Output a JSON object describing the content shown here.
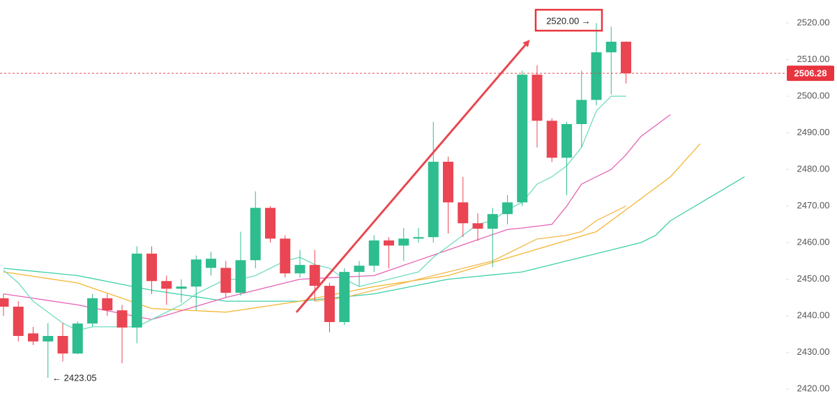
{
  "chart_data": {
    "type": "candlestick",
    "ylim": [
      2418.5,
      2526.3
    ],
    "yticks": [
      {
        "value": 2420,
        "label": "2420.00"
      },
      {
        "value": 2430,
        "label": "2430.00"
      },
      {
        "value": 2440,
        "label": "2440.00"
      },
      {
        "value": 2450,
        "label": "2450.00"
      },
      {
        "value": 2460,
        "label": "2460.00"
      },
      {
        "value": 2470,
        "label": "2470.00"
      },
      {
        "value": 2480,
        "label": "2480.00"
      },
      {
        "value": 2490,
        "label": "2490.00"
      },
      {
        "value": 2500,
        "label": "2500.00"
      },
      {
        "value": 2510,
        "label": "2510.00"
      },
      {
        "value": 2520,
        "label": "2520.00"
      }
    ],
    "up_color": "#2dbd8f",
    "down_color": "#ea4552",
    "open": [
      2444.8,
      2442.5,
      2435.2,
      2433,
      2434.5,
      2429.7,
      2437.9,
      2444.8,
      2441.5,
      2436.8,
      2457,
      2449.5,
      2447.4,
      2448,
      2453.1,
      2453.1,
      2446.3,
      2455.2,
      2469.5,
      2461.1,
      2451.6,
      2453.9,
      2448.2,
      2438.3,
      2452,
      2453.7,
      2460.6,
      2459.2,
      2461.1,
      2461.5,
      2482.1,
      2471,
      2465.3,
      2463.8,
      2467.8,
      2471,
      2505.9,
      2493.3,
      2483.2,
      2492.4,
      2499,
      2512,
      2514.9
    ],
    "high": [
      2446,
      2444,
      2437,
      2438,
      2438,
      2438.5,
      2446,
      2446,
      2443,
      2459,
      2459,
      2451,
      2450,
      2456.5,
      2457.5,
      2455,
      2463,
      2474,
      2470,
      2462,
      2458,
      2458,
      2449,
      2453,
      2455,
      2462,
      2461.5,
      2464,
      2464,
      2493,
      2483.5,
      2478,
      2468,
      2469.5,
      2473,
      2507,
      2508.5,
      2494,
      2493,
      2507,
      2520,
      2519,
      2515
    ],
    "low": [
      2440,
      2433,
      2432,
      2423.05,
      2427.5,
      2429.5,
      2437,
      2440,
      2427,
      2432.5,
      2446,
      2443,
      2443.5,
      2441.5,
      2451,
      2445,
      2445.5,
      2453,
      2460,
      2450.5,
      2450.5,
      2444,
      2435.5,
      2437.5,
      2448,
      2452,
      2453,
      2455,
      2460,
      2460,
      2462.5,
      2461.5,
      2460.5,
      2453.3,
      2465,
      2470,
      2486,
      2482,
      2473,
      2486,
      2497.5,
      2500.5,
      2503.5
    ],
    "close": [
      2442.5,
      2434.5,
      2433,
      2434.5,
      2429.7,
      2437.9,
      2444.8,
      2441.5,
      2436.8,
      2457,
      2449.5,
      2447.4,
      2448,
      2455.4,
      2455.6,
      2446.3,
      2455.2,
      2469.5,
      2461.1,
      2451.6,
      2453.9,
      2448.2,
      2438.3,
      2452,
      2453.7,
      2460.6,
      2459.2,
      2461.1,
      2461.5,
      2482.1,
      2471,
      2465.3,
      2463.8,
      2467.8,
      2471,
      2505.9,
      2493.3,
      2483.2,
      2492.4,
      2499,
      2512,
      2514.9,
      2506.28
    ],
    "lines": [
      {
        "color": "#3ecfa8",
        "values": [
          2453,
          2452.6,
          2452.2,
          2451.8,
          2451.4,
          2451,
          2450.2,
          2449.4,
          2448.6,
          2447.8,
          2447,
          2446.4,
          2445.8,
          2445.2,
          2444.6,
          2444,
          2444,
          2444,
          2444,
          2444,
          2444,
          2444.4,
          2444.8,
          2445.2,
          2445.6,
          2446,
          2446.8,
          2447.6,
          2448.4,
          2449.2,
          2450,
          2450.4,
          2450.8,
          2451.2,
          2451.6,
          2452,
          2453,
          2454,
          2455,
          2456,
          2457,
          2458,
          2459,
          2460,
          2462,
          2466,
          2468.4,
          2470.8,
          2473.2,
          2475.6,
          2478
        ]
      },
      {
        "color": "#f5b52e",
        "values": [
          2452,
          2451.4,
          2450.8,
          2450.2,
          2449.6,
          2449,
          2447.6,
          2446.2,
          2444.8,
          2443.4,
          2442,
          2441.8,
          2441.6,
          2441.4,
          2441.2,
          2441,
          2441.6,
          2442.2,
          2442.8,
          2443.4,
          2444,
          2444.8,
          2445.6,
          2446.4,
          2447.2,
          2448,
          2448.6,
          2449.2,
          2449.8,
          2450.4,
          2451,
          2452.2,
          2453.4,
          2454.6,
          2455.8,
          2457,
          2458.2,
          2459.4,
          2460.6,
          2461.8,
          2463,
          2466,
          2469,
          2472,
          2475,
          2478,
          2482.5,
          2487,
          null,
          null,
          null
        ]
      },
      {
        "color": "#e562b4",
        "values": [
          2446,
          2445.4,
          2444.8,
          2444.2,
          2443.6,
          2443,
          2442.2,
          2441.4,
          2440.6,
          2439.8,
          2439,
          2440.2,
          2441.4,
          2442.6,
          2443.8,
          2445,
          2446,
          2447,
          2448,
          2449,
          2450,
          2450.2,
          2450.4,
          2450.6,
          2450.8,
          2451,
          2452.4,
          2453.8,
          2455.2,
          2456.6,
          2458,
          2459.4,
          2460.8,
          2462.2,
          2463.6,
          2464,
          2464.5,
          2465,
          2470,
          2476,
          2478,
          2480,
          2484,
          2489,
          2492,
          2495,
          null,
          null,
          null,
          null,
          null
        ]
      },
      {
        "color": "#f2b84a",
        "values": [
          null,
          null,
          null,
          null,
          null,
          null,
          null,
          null,
          null,
          null,
          null,
          null,
          null,
          null,
          null,
          null,
          null,
          null,
          null,
          null,
          null,
          2444,
          2444.5,
          2445,
          2446,
          2447,
          2448,
          2449,
          2450,
          2451,
          2452,
          2453,
          2454,
          2455,
          2457,
          2459,
          2461,
          2461.5,
          2462,
          2463,
          2466,
          2468,
          2470,
          null,
          null,
          null,
          null,
          null,
          null,
          null,
          null
        ]
      },
      {
        "color": "#6fdcc0",
        "values": [
          2452.5,
          2449,
          2444,
          2441,
          2438,
          2436,
          2437,
          2437,
          2437,
          2437,
          2439,
          2441,
          2443,
          2446,
          2448,
          2450,
          2450,
          2451,
          2453,
          2455,
          2456,
          2454,
          2453,
          2450,
          2448,
          2449,
          2450,
          2451,
          2452,
          2456,
          2459,
          2462,
          2465,
          2466,
          2469,
          2471,
          2476,
          2478,
          2481,
          2486,
          2496,
          2500,
          2500,
          null,
          null,
          null,
          null,
          null,
          null,
          null,
          null
        ]
      }
    ],
    "last_price": 2506.28,
    "annotations": [
      {
        "text": "2520.00 →"
      },
      {
        "text": "← 2423.05"
      }
    ]
  }
}
